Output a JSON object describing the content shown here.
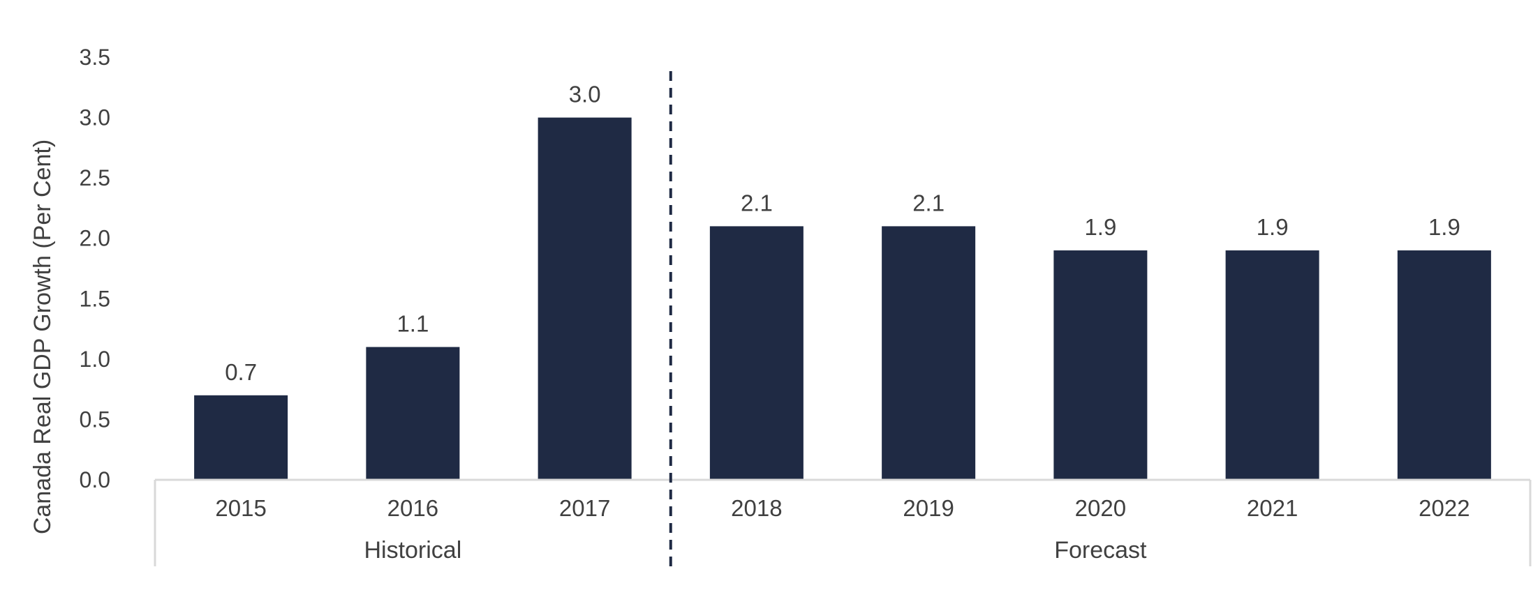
{
  "chart_data": {
    "type": "bar",
    "title": "",
    "xlabel": "",
    "ylabel": "Canada Real GDP Growth (Per Cent)",
    "categories": [
      "2015",
      "2016",
      "2017",
      "2018",
      "2019",
      "2020",
      "2021",
      "2022"
    ],
    "values": [
      0.7,
      1.1,
      3.0,
      2.1,
      2.1,
      1.9,
      1.9,
      1.9
    ],
    "value_labels": [
      "0.7",
      "1.1",
      "3.0",
      "2.1",
      "2.1",
      "1.9",
      "1.9",
      "1.9"
    ],
    "ylim": [
      0,
      3.5
    ],
    "yticks": [
      "0.0",
      "0.5",
      "1.0",
      "1.5",
      "2.0",
      "2.5",
      "3.0",
      "3.5"
    ],
    "groups": [
      {
        "label": "Historical",
        "categories": [
          "2015",
          "2016",
          "2017"
        ]
      },
      {
        "label": "Forecast",
        "categories": [
          "2018",
          "2019",
          "2020",
          "2021",
          "2022"
        ]
      }
    ],
    "divider_after_category": "2017",
    "grid": false,
    "legend": "none",
    "colors": {
      "bar": "#1f2a44",
      "divider": "#1f2a44",
      "axis": "#d9d9d9",
      "text": "#404040"
    }
  }
}
